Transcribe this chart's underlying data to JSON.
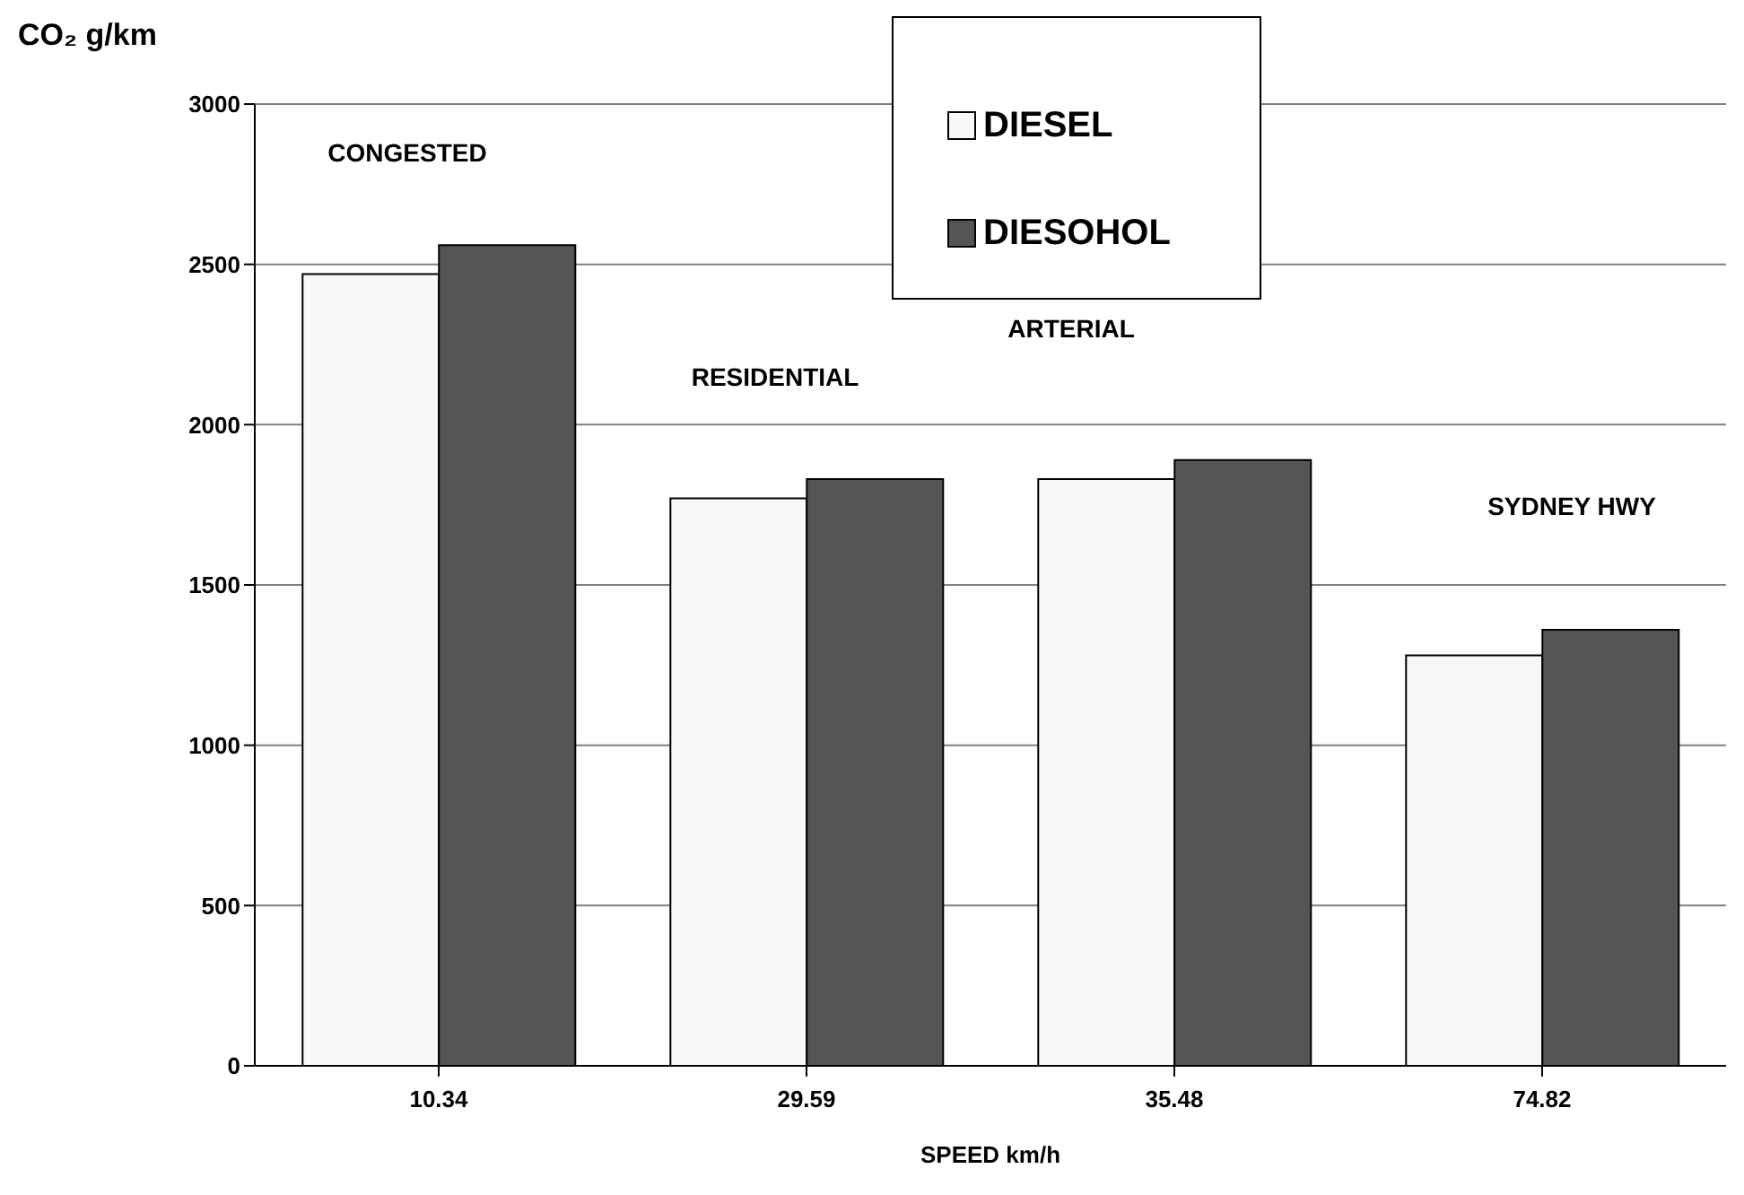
{
  "chart_data": {
    "type": "bar",
    "ylabel": "CO₂ g/km",
    "xlabel": "SPEED km/h",
    "categories": [
      "10.34",
      "29.59",
      "35.48",
      "74.82"
    ],
    "series": [
      {
        "name": "DIESEL",
        "color": "#f8f8f8",
        "values": [
          2470,
          1770,
          1830,
          1280
        ]
      },
      {
        "name": "DIESOHOL",
        "color": "#555555",
        "values": [
          2560,
          1830,
          1890,
          1360
        ]
      }
    ],
    "ylim": [
      0,
      3000
    ],
    "yticks": [
      0,
      500,
      1000,
      1500,
      2000,
      2500,
      3000
    ],
    "grid": "y",
    "legend": "top",
    "annotations": [
      "CONGESTED",
      "RESIDENTIAL",
      "ARTERIAL",
      "SYDNEY HWY"
    ]
  }
}
